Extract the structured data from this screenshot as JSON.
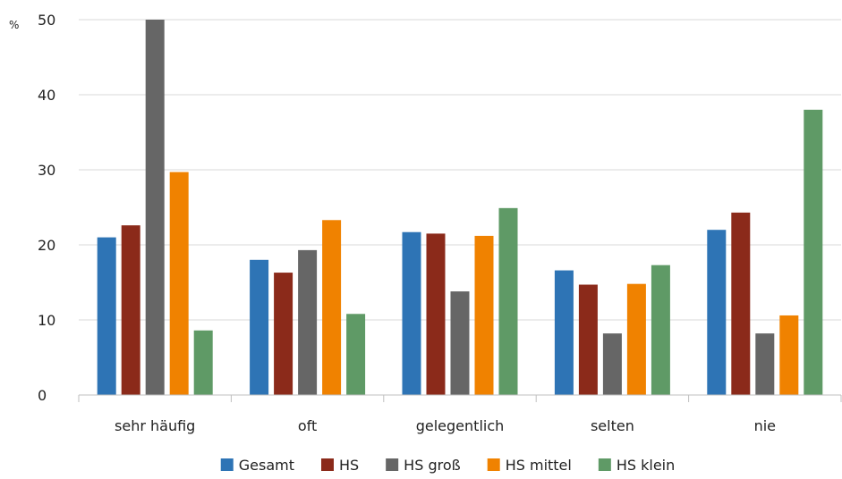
{
  "chart_data": {
    "type": "bar",
    "title": "",
    "xlabel": "",
    "ylabel": "%",
    "ylim": [
      0,
      50
    ],
    "yticks": [
      0,
      10,
      20,
      30,
      40,
      50
    ],
    "grid": true,
    "legend_position": "bottom",
    "categories": [
      "sehr häufig",
      "oft",
      "gelegentlich",
      "selten",
      "nie"
    ],
    "series": [
      {
        "name": "Gesamt",
        "color": "#2e74b5",
        "values": [
          21.0,
          18.0,
          21.7,
          16.6,
          22.0
        ]
      },
      {
        "name": "HS",
        "color": "#8b2a1a",
        "values": [
          22.6,
          16.3,
          21.5,
          14.7,
          24.3
        ]
      },
      {
        "name": "HS groß",
        "color": "#666666",
        "values": [
          50.0,
          19.3,
          13.8,
          8.2,
          8.2
        ]
      },
      {
        "name": "HS mittel",
        "color": "#f08200",
        "values": [
          29.7,
          23.3,
          21.2,
          14.8,
          10.6
        ]
      },
      {
        "name": "HS klein",
        "color": "#5f9a66",
        "values": [
          8.6,
          10.8,
          24.9,
          17.3,
          38.0
        ]
      }
    ]
  }
}
